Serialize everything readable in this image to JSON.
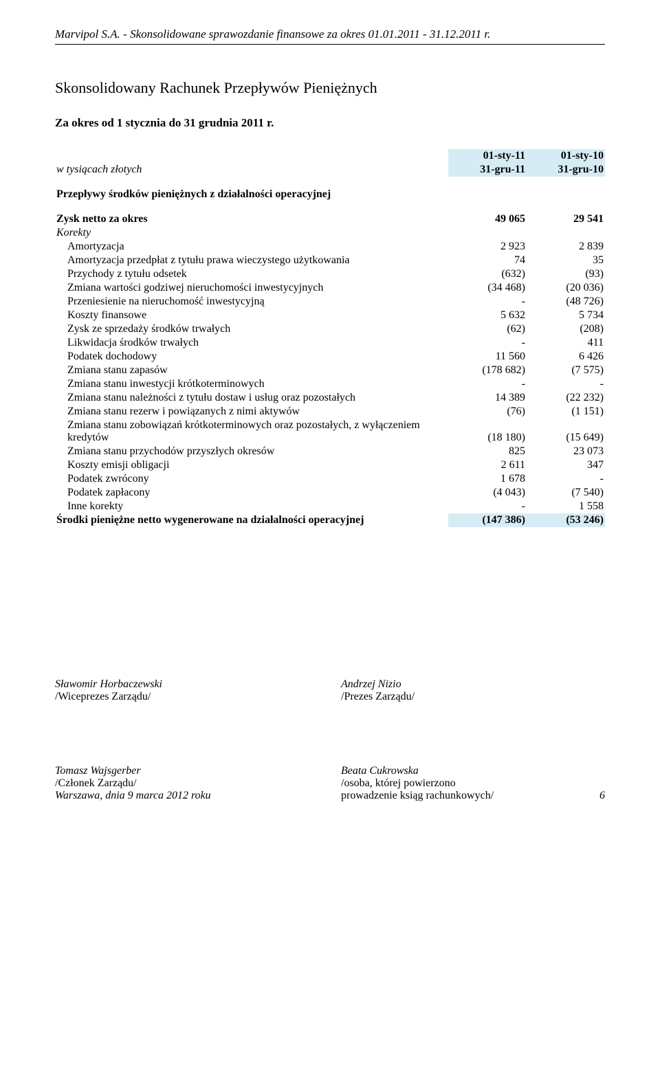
{
  "header": {
    "company_line": "Marvipol S.A. - Skonsolidowane sprawozdanie finansowe za okres 01.01.2011 - 31.12.2011 r."
  },
  "title": "Skonsolidowany Rachunek Przepływów Pieniężnych",
  "subtitle": "Za okres od 1 stycznia do 31 grudnia 2011 r.",
  "columns": {
    "unit_label": "w tysiącach złotych",
    "col1_top": "01-sty-11",
    "col1_bot": "31-gru-11",
    "col2_top": "01-sty-10",
    "col2_bot": "31-gru-10"
  },
  "section_heading": "Przepływy środków pieniężnych z działalności operacyjnej",
  "rows": [
    {
      "label": "Zysk netto za okres",
      "c1": "49 065",
      "c2": "29 541",
      "bold": true
    },
    {
      "label": "Korekty",
      "c1": "",
      "c2": "",
      "italic": true
    },
    {
      "label": "Amortyzacja",
      "c1": "2 923",
      "c2": "2 839",
      "indent": true
    },
    {
      "label": "Amortyzacja przedpłat z tytułu prawa wieczystego użytkowania",
      "c1": "74",
      "c2": "35",
      "indent": true
    },
    {
      "label": "Przychody z tytułu odsetek",
      "c1": "(632)",
      "c2": "(93)",
      "indent": true
    },
    {
      "label": "Zmiana wartości godziwej nieruchomości inwestycyjnych",
      "c1": "(34 468)",
      "c2": "(20 036)",
      "indent": true
    },
    {
      "label": "Przeniesienie na nieruchomość inwestycyjną",
      "c1": "-",
      "c2": "(48 726)",
      "indent": true
    },
    {
      "label": "Koszty finansowe",
      "c1": "5 632",
      "c2": "5 734",
      "indent": true
    },
    {
      "label": "Zysk ze sprzedaży środków trwałych",
      "c1": "(62)",
      "c2": "(208)",
      "indent": true
    },
    {
      "label": "Likwidacja środków trwałych",
      "c1": "-",
      "c2": "411",
      "indent": true
    },
    {
      "label": "Podatek dochodowy",
      "c1": "11 560",
      "c2": "6 426",
      "indent": true
    },
    {
      "label": "Zmiana stanu zapasów",
      "c1": "(178 682)",
      "c2": "(7 575)",
      "indent": true
    },
    {
      "label": "Zmiana stanu inwestycji krótkoterminowych",
      "c1": "-",
      "c2": "-",
      "indent": true
    },
    {
      "label": "Zmiana stanu należności z tytułu dostaw i usług oraz pozostałych",
      "c1": "14 389",
      "c2": "(22 232)",
      "indent": true
    },
    {
      "label": "Zmiana stanu rezerw i powiązanych z nimi aktywów",
      "c1": "(76)",
      "c2": "(1 151)",
      "indent": true
    },
    {
      "label": "Zmiana stanu zobowiązań krótkoterminowych oraz pozostałych, z wyłączeniem kredytów",
      "c1": "(18 180)",
      "c2": "(15 649)",
      "indent": true
    },
    {
      "label": "Zmiana stanu przychodów przyszłych okresów",
      "c1": "825",
      "c2": "23 073",
      "indent": true
    },
    {
      "label": "Koszty emisji obligacji",
      "c1": "2 611",
      "c2": "347",
      "indent": true
    },
    {
      "label": "Podatek zwrócony",
      "c1": "1 678",
      "c2": "-",
      "indent": true
    },
    {
      "label": "Podatek zapłacony",
      "c1": "(4 043)",
      "c2": "(7 540)",
      "indent": true
    },
    {
      "label": "Inne korekty",
      "c1": "-",
      "c2": "1 558",
      "indent": true
    },
    {
      "label": "Środki pieniężne netto wygenerowane na działalności operacyjnej",
      "c1": "(147 386)",
      "c2": "(53 246)",
      "bold": true,
      "hl": true
    }
  ],
  "signatures": {
    "top_left_name": "Sławomir Horbaczewski",
    "top_left_role": "/Wiceprezes Zarządu/",
    "top_right_name": "Andrzej Nizio",
    "top_right_role": "/Prezes Zarządu/",
    "bot_left_name": "Tomasz Wajsgerber",
    "bot_left_role": "/Członek Zarządu/",
    "bot_right_name": "Beata Cukrowska",
    "bot_right_role1": "/osoba, której powierzono",
    "bot_right_role2": "prowadzenie ksiąg rachunkowych/"
  },
  "footer": {
    "date": "Warszawa, dnia 9 marca 2012 roku",
    "page": "6"
  }
}
